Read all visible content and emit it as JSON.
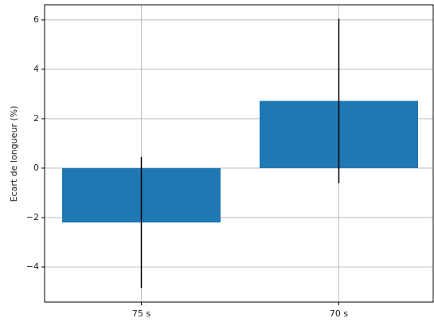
{
  "chart_data": {
    "type": "bar",
    "ylabel": "Ecart de longueur (%)",
    "categories": [
      "75 s",
      "70 s"
    ],
    "values": [
      -2.2,
      2.72
    ],
    "errors": [
      2.65,
      3.33
    ],
    "color": "#1f77b4",
    "error_color": "#000000",
    "ylim": [
      -5.42,
      6.61
    ],
    "yticks": [
      {
        "value": -4,
        "label": "−4"
      },
      {
        "value": -2,
        "label": "−2"
      },
      0,
      2,
      4,
      6
    ],
    "grid": true
  }
}
